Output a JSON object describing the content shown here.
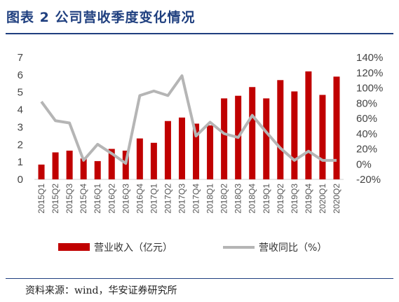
{
  "header": {
    "title": "图表 2 公司营收季度变化情况"
  },
  "footer": {
    "source": "资料来源：wind，华安证券研究所"
  },
  "colors": {
    "title_blue": "#1f3f7f",
    "bar_red": "#c00000",
    "line_gray": "#b5b5b5"
  },
  "chart_data": {
    "type": "bar",
    "title": "",
    "xlabel": "",
    "ylabel": "",
    "categories": [
      "2015Q1",
      "2015Q2",
      "2015Q3",
      "2015Q4",
      "2016Q1",
      "2016Q2",
      "2016Q3",
      "2016Q4",
      "2017Q1",
      "2017Q2",
      "2017Q3",
      "2017Q4",
      "2018Q1",
      "2018Q2",
      "2018Q3",
      "2018Q4",
      "2019Q1",
      "2019Q2",
      "2019Q3",
      "2019Q4",
      "2020Q1",
      "2020Q2"
    ],
    "series": [
      {
        "name": "营业收入（亿元）",
        "type": "bar",
        "axis": "left",
        "values": [
          0.85,
          1.55,
          1.65,
          1.2,
          1.05,
          1.75,
          1.65,
          2.35,
          2.1,
          3.35,
          3.55,
          3.2,
          3.1,
          4.65,
          4.8,
          5.3,
          4.65,
          5.7,
          5.05,
          6.2,
          4.85,
          5.9
        ]
      },
      {
        "name": "营收同比（%）",
        "type": "line",
        "axis": "right",
        "values": [
          82,
          57,
          54,
          5,
          26,
          14,
          1,
          90,
          96,
          90,
          116,
          37,
          55,
          40,
          35,
          64,
          42,
          21,
          5,
          17,
          5,
          5
        ]
      }
    ],
    "ylim_left": [
      0,
      7
    ],
    "yticks_left": [
      "0",
      "1",
      "2",
      "3",
      "4",
      "5",
      "6",
      "7"
    ],
    "ylim_right": [
      -20,
      140
    ],
    "yticks_right": [
      "-20%",
      "0%",
      "20%",
      "40%",
      "60%",
      "80%",
      "100%",
      "120%",
      "140%"
    ],
    "grid": false,
    "legend_position": "bottom"
  }
}
